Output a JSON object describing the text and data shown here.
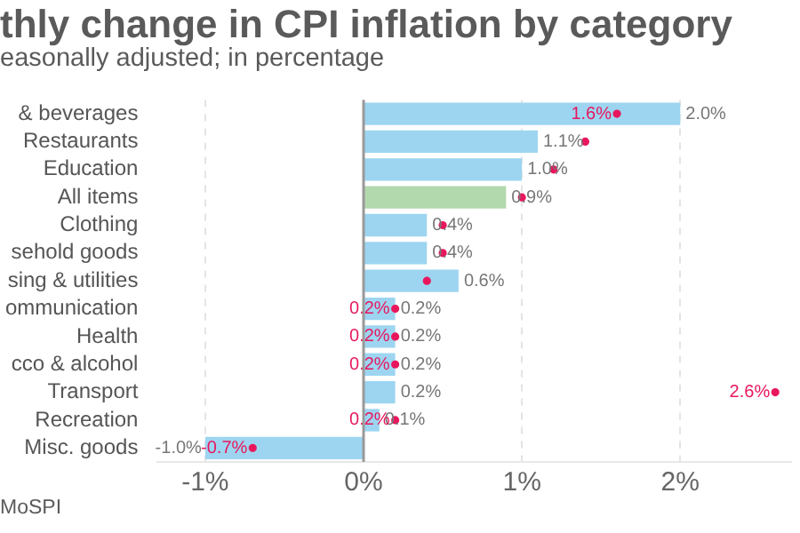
{
  "chart_data": {
    "type": "bar",
    "orientation": "horizontal",
    "title": "thly change in CPI inflation by category",
    "subtitle": "easonally adjusted; in percentage",
    "annotations": [
      "MoSPI"
    ],
    "categories": [
      "& beverages",
      "Restaurants",
      "Education",
      "All items",
      "Clothing",
      "sehold goods",
      "sing & utilities",
      "ommunication",
      "Health",
      "cco & alcohol",
      "Transport",
      "Recreation",
      "Misc. goods"
    ],
    "series": [
      {
        "colors": [
          "#9dd5f1",
          "#9dd5f1",
          "#9dd5f1",
          "#b2d8ad",
          "#9dd5f1",
          "#9dd5f1",
          "#9dd5f1",
          "#9dd5f1",
          "#9dd5f1",
          "#9dd5f1",
          "#9dd5f1",
          "#9dd5f1",
          "#9dd5f1"
        ],
        "values": [
          2.0,
          1.1,
          1.0,
          0.9,
          0.4,
          0.4,
          0.6,
          0.2,
          0.2,
          0.2,
          0.2,
          0.1,
          -1.0
        ],
        "value_labels": [
          "2.0%",
          "1.1%",
          "1.0%",
          "0.9%",
          "0.4%",
          "0.4%",
          "0.6%",
          "0.2%",
          "0.2%",
          "0.2%",
          "0.2%",
          "0.1%",
          "-1.0%"
        ]
      },
      {
        "type": "scatter",
        "color": "#e8175d",
        "marker": "circle",
        "values": [
          1.6,
          1.4,
          1.2,
          1.0,
          0.5,
          0.5,
          0.4,
          0.2,
          0.2,
          0.2,
          2.6,
          0.2,
          -0.7
        ],
        "value_labels": [
          "1.6%",
          null,
          null,
          null,
          null,
          null,
          null,
          "0.2%",
          "0.2%",
          "0.2%",
          "2.6%",
          "0.2%",
          "-0.7%"
        ]
      }
    ],
    "xlim": [
      -1.3,
      2.7
    ],
    "xticks": [
      {
        "value": -1,
        "label": "-1%"
      },
      {
        "value": 0,
        "label": "0%"
      },
      {
        "value": 1,
        "label": "1%"
      },
      {
        "value": 2,
        "label": "2%"
      }
    ],
    "ref_lines": [
      {
        "axis": "x",
        "value": 0,
        "color": "#999999"
      }
    ],
    "grid": "x",
    "legend": false
  }
}
